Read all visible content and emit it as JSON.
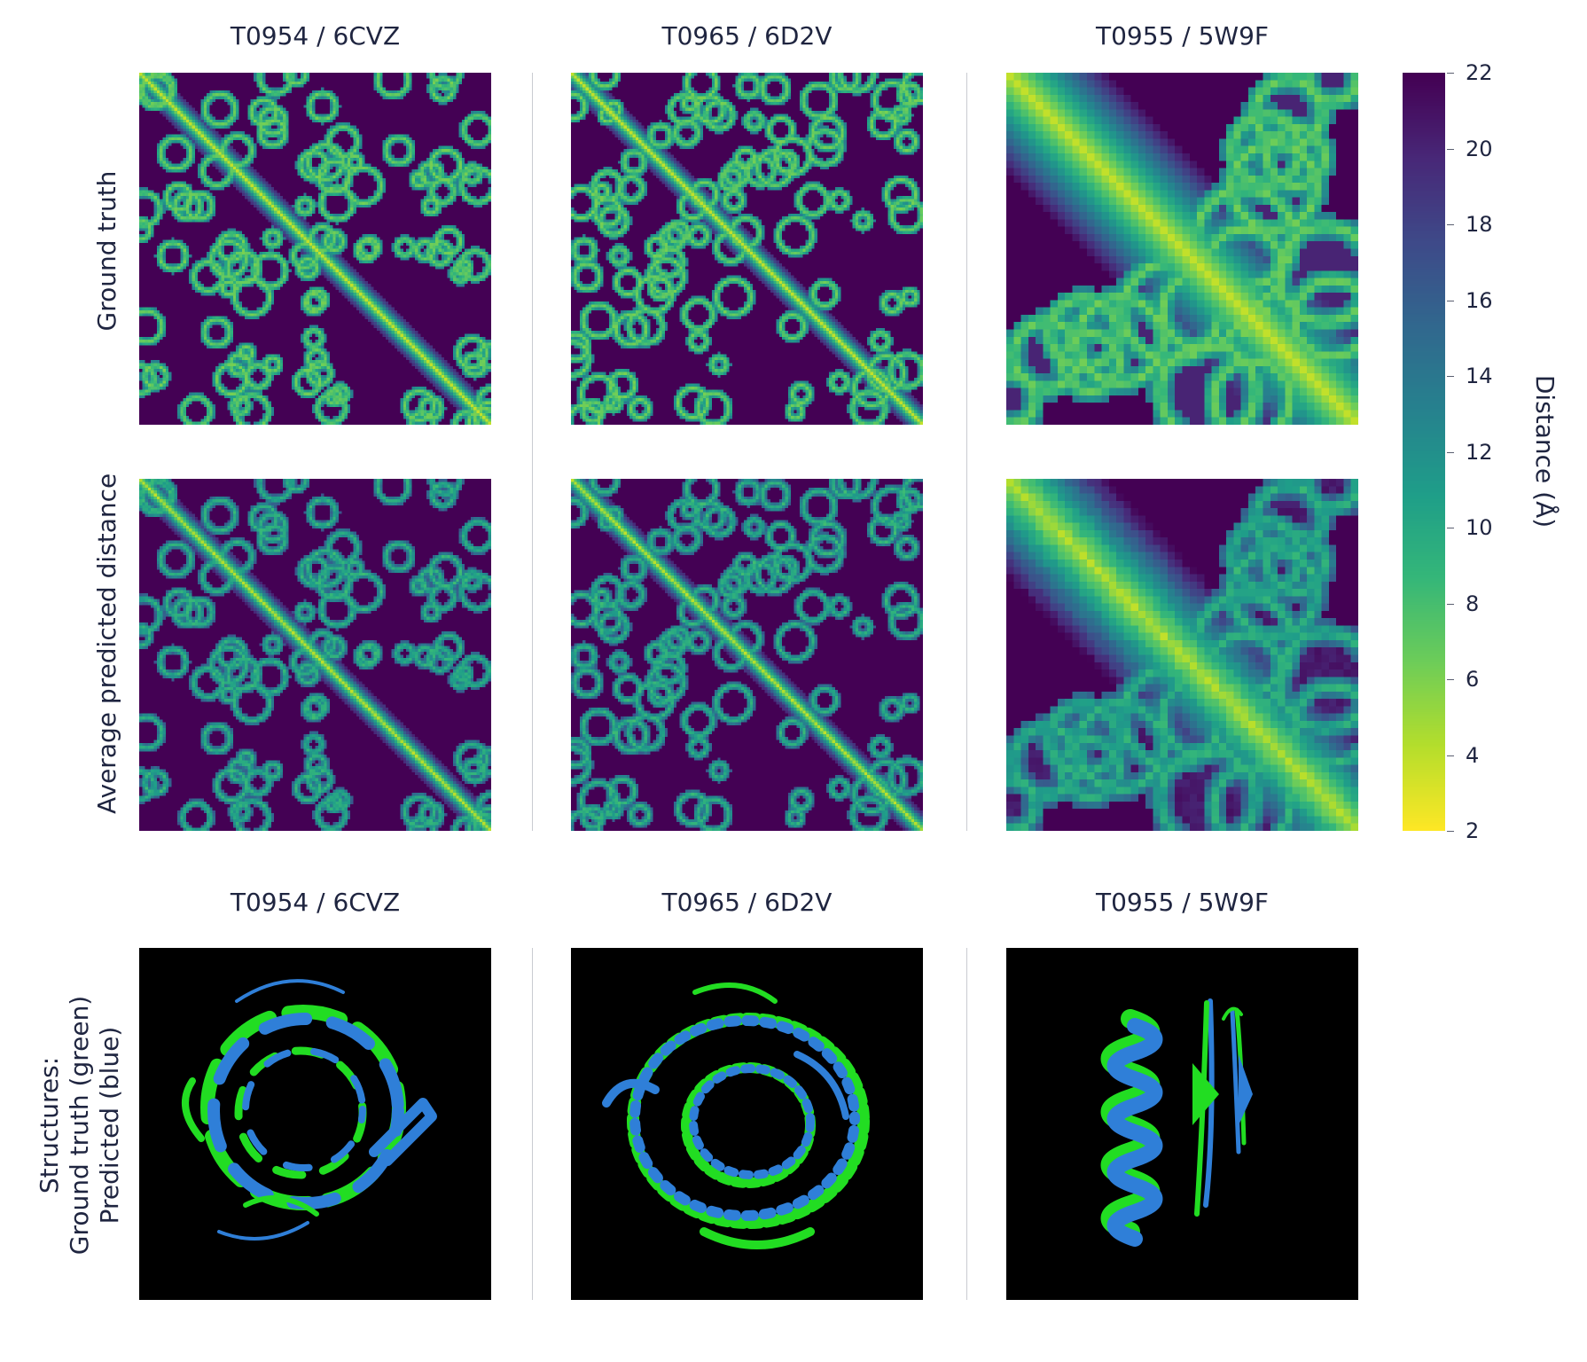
{
  "columns": [
    {
      "title": "T0954 / 6CVZ"
    },
    {
      "title": "T0965 / 6D2V"
    },
    {
      "title": "T0955 / 5W9F"
    }
  ],
  "row_labels": {
    "ground_truth": "Ground truth",
    "predicted": "Average predicted distance",
    "structures_line1": "Structures:",
    "structures_line2": "Ground truth (green)",
    "structures_line3": "Predicted (blue)"
  },
  "colorbar": {
    "label": "Distance (Å)",
    "ticks": [
      "22",
      "20",
      "18",
      "16",
      "14",
      "12",
      "10",
      "8",
      "6",
      "4",
      "2"
    ],
    "min": 2,
    "max": 22,
    "colormap": "viridis"
  },
  "colors": {
    "ground_truth_structure": "#22dd22",
    "predicted_structure": "#2f7fd8",
    "structure_background": "#000000",
    "text": "#1f2540"
  },
  "chart_data": {
    "type": "heatmap",
    "value_range": [
      2,
      22
    ],
    "panels": [
      {
        "column": "T0954 / 6CVZ",
        "row": "Ground truth"
      },
      {
        "column": "T0965 / 6D2V",
        "row": "Ground truth"
      },
      {
        "column": "T0955 / 5W9F",
        "row": "Ground truth"
      },
      {
        "column": "T0954 / 6CVZ",
        "row": "Average predicted distance"
      },
      {
        "column": "T0965 / 6D2V",
        "row": "Average predicted distance"
      },
      {
        "column": "T0955 / 5W9F",
        "row": "Average predicted distance"
      }
    ]
  }
}
